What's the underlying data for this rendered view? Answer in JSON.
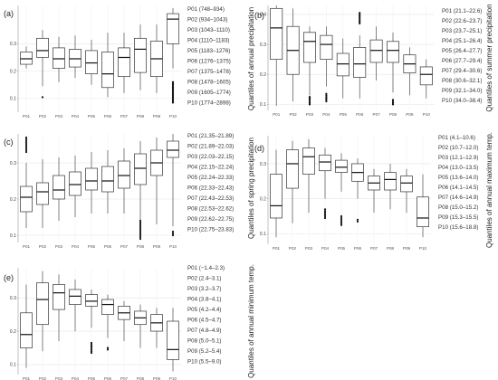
{
  "chart_data": [
    {
      "type": "box",
      "panel": "(a)",
      "ylabel": "Quantiles of annual precipitation",
      "ylim": [
        0.05,
        0.44
      ],
      "yticks": [
        0.1,
        0.2,
        0.3
      ],
      "grid": true,
      "categories": [
        "P01",
        "P02",
        "P03",
        "P04",
        "P05",
        "P06",
        "P07",
        "P08",
        "P09",
        "P10"
      ],
      "legend": [
        "P01 (748–934)",
        "P02 (934–1043)",
        "P03 (1043–1110)",
        "P04 (1110–1183)",
        "P05 (1183–1276)",
        "P06 (1276–1375)",
        "P07 (1375–1478)",
        "P08 (1478–1605)",
        "P09 (1605–1774)",
        "P10 (1774–2898)"
      ],
      "boxes": [
        {
          "min": 0.21,
          "q1": 0.225,
          "median": 0.245,
          "q3": 0.27,
          "max": 0.29,
          "outliers": []
        },
        {
          "min": 0.145,
          "q1": 0.25,
          "median": 0.275,
          "q3": 0.32,
          "max": 0.35,
          "outliers": [
            0.105
          ]
        },
        {
          "min": 0.16,
          "q1": 0.21,
          "median": 0.245,
          "q3": 0.285,
          "max": 0.325,
          "outliers": []
        },
        {
          "min": 0.175,
          "q1": 0.215,
          "median": 0.245,
          "q3": 0.28,
          "max": 0.33,
          "outliers": []
        },
        {
          "min": 0.15,
          "q1": 0.19,
          "median": 0.23,
          "q3": 0.275,
          "max": 0.315,
          "outliers": []
        },
        {
          "min": 0.105,
          "q1": 0.14,
          "median": 0.19,
          "q3": 0.27,
          "max": 0.34,
          "outliers": []
        },
        {
          "min": 0.12,
          "q1": 0.18,
          "median": 0.25,
          "q3": 0.285,
          "max": 0.34,
          "outliers": []
        },
        {
          "min": 0.13,
          "q1": 0.195,
          "median": 0.28,
          "q3": 0.32,
          "max": 0.37,
          "outliers": []
        },
        {
          "min": 0.12,
          "q1": 0.18,
          "median": 0.245,
          "q3": 0.31,
          "max": 0.37,
          "outliers": []
        },
        {
          "min": 0.21,
          "q1": 0.3,
          "median": 0.39,
          "q3": 0.41,
          "max": 0.43,
          "outliers": [
            0.085,
            0.09,
            0.095,
            0.1,
            0.105,
            0.11,
            0.115,
            0.12,
            0.125,
            0.13,
            0.135,
            0.14,
            0.145,
            0.15,
            0.155,
            0.16
          ]
        }
      ]
    },
    {
      "type": "box",
      "panel": "(b)",
      "ylabel": "Quantiles of summer precipitation",
      "ylim": [
        0.08,
        0.43
      ],
      "yticks": [
        0.1,
        0.2,
        0.3,
        0.4
      ],
      "grid": true,
      "categories": [
        "P01",
        "P02",
        "P03",
        "P04",
        "P05",
        "P06",
        "P07",
        "P08",
        "P09",
        "P10"
      ],
      "legend": [
        "P01 (21.1–22.6)",
        "P02 (22.6–23.7)",
        "P03 (23.7–25.1)",
        "P04 (25.1–26.4)",
        "P05 (26.4–27.7)",
        "P06 (27.7–29.4)",
        "P07 (29.4–30.6)",
        "P08 (30.6–32.1)",
        "P09 (32.1–34.0)",
        "P10 (34.0–38.4)"
      ],
      "boxes": [
        {
          "min": 0.095,
          "q1": 0.25,
          "median": 0.355,
          "q3": 0.42,
          "max": 0.43,
          "outliers": []
        },
        {
          "min": 0.11,
          "q1": 0.2,
          "median": 0.28,
          "q3": 0.36,
          "max": 0.42,
          "outliers": []
        },
        {
          "min": 0.13,
          "q1": 0.24,
          "median": 0.31,
          "q3": 0.34,
          "max": 0.36,
          "outliers": [
            0.1,
            0.105,
            0.11,
            0.115,
            0.12,
            0.125
          ]
        },
        {
          "min": 0.16,
          "q1": 0.25,
          "median": 0.3,
          "q3": 0.33,
          "max": 0.36,
          "outliers": [
            0.11,
            0.115,
            0.12,
            0.125,
            0.13,
            0.135
          ]
        },
        {
          "min": 0.12,
          "q1": 0.195,
          "median": 0.235,
          "q3": 0.27,
          "max": 0.32,
          "outliers": []
        },
        {
          "min": 0.12,
          "q1": 0.19,
          "median": 0.235,
          "q3": 0.29,
          "max": 0.33,
          "outliers": [
            0.37,
            0.375,
            0.38,
            0.385,
            0.39,
            0.395,
            0.4,
            0.405
          ]
        },
        {
          "min": 0.18,
          "q1": 0.24,
          "median": 0.28,
          "q3": 0.315,
          "max": 0.36,
          "outliers": []
        },
        {
          "min": 0.14,
          "q1": 0.24,
          "median": 0.28,
          "q3": 0.31,
          "max": 0.34,
          "outliers": [
            0.1,
            0.105,
            0.11,
            0.115
          ]
        },
        {
          "min": 0.13,
          "q1": 0.205,
          "median": 0.235,
          "q3": 0.265,
          "max": 0.29,
          "outliers": []
        },
        {
          "min": 0.12,
          "q1": 0.165,
          "median": 0.2,
          "q3": 0.225,
          "max": 0.25,
          "outliers": []
        }
      ]
    },
    {
      "type": "box",
      "panel": "(c)",
      "ylabel": "Quantiles of spring precipitation",
      "ylim": [
        0.08,
        0.38
      ],
      "yticks": [
        0.1,
        0.2,
        0.3
      ],
      "grid": true,
      "categories": [
        "P01",
        "P02",
        "P03",
        "P04",
        "P05",
        "P06",
        "P07",
        "P08",
        "P09",
        "P10"
      ],
      "legend": [
        "P01 (21.35–21.89)",
        "P02 (21.89–22.03)",
        "P03 (22.03–22.15)",
        "P04 (22.15–22.24)",
        "P05 (22.24–22.33)",
        "P06 (22.33–22.43)",
        "P07 (22.43–22.53)",
        "P08 (22.53–22.62)",
        "P09 (22.62–22.75)",
        "P10 (22.75–23.83)"
      ],
      "boxes": [
        {
          "min": 0.12,
          "q1": 0.165,
          "median": 0.205,
          "q3": 0.235,
          "max": 0.3,
          "outliers": [
            0.33,
            0.335,
            0.34,
            0.345,
            0.35,
            0.355,
            0.36,
            0.365,
            0.37
          ]
        },
        {
          "min": 0.12,
          "q1": 0.185,
          "median": 0.22,
          "q3": 0.245,
          "max": 0.31,
          "outliers": []
        },
        {
          "min": 0.14,
          "q1": 0.2,
          "median": 0.225,
          "q3": 0.265,
          "max": 0.315,
          "outliers": []
        },
        {
          "min": 0.15,
          "q1": 0.21,
          "median": 0.24,
          "q3": 0.275,
          "max": 0.32,
          "outliers": []
        },
        {
          "min": 0.16,
          "q1": 0.225,
          "median": 0.25,
          "q3": 0.285,
          "max": 0.33,
          "outliers": []
        },
        {
          "min": 0.16,
          "q1": 0.22,
          "median": 0.25,
          "q3": 0.29,
          "max": 0.335,
          "outliers": []
        },
        {
          "min": 0.16,
          "q1": 0.23,
          "median": 0.265,
          "q3": 0.305,
          "max": 0.34,
          "outliers": []
        },
        {
          "min": 0.14,
          "q1": 0.24,
          "median": 0.285,
          "q3": 0.325,
          "max": 0.36,
          "outliers": [
            0.09,
            0.095,
            0.1,
            0.105,
            0.11,
            0.115,
            0.12,
            0.125,
            0.13,
            0.135,
            0.14
          ]
        },
        {
          "min": 0.13,
          "q1": 0.265,
          "median": 0.3,
          "q3": 0.335,
          "max": 0.37,
          "outliers": []
        },
        {
          "min": 0.125,
          "q1": 0.315,
          "median": 0.335,
          "q3": 0.36,
          "max": 0.38,
          "outliers": [
            0.1,
            0.105,
            0.11
          ]
        }
      ]
    },
    {
      "type": "box",
      "panel": "(d)",
      "ylabel": "Quantiles of annual maximum temp.",
      "ylim": [
        0.07,
        0.38
      ],
      "yticks": [
        0.1,
        0.2,
        0.3
      ],
      "grid": true,
      "categories": [
        "P01",
        "P02",
        "P03",
        "P04",
        "P05",
        "P06",
        "P07",
        "P08",
        "P09",
        "P10"
      ],
      "legend": [
        "P01 (4.1–10.6)",
        "P02 (10.7–12.0)",
        "P03 (12.1–12.9)",
        "P04 (13.0–13.5)",
        "P05 (13.6–14.0)",
        "P06 (14.1–14.5)",
        "P07 (14.6–14.9)",
        "P08 (15.0–15.2)",
        "P09 (15.3–15.5)",
        "P10 (15.6–18.8)"
      ],
      "boxes": [
        {
          "min": 0.09,
          "q1": 0.145,
          "median": 0.18,
          "q3": 0.27,
          "max": 0.34,
          "outliers": []
        },
        {
          "min": 0.13,
          "q1": 0.23,
          "median": 0.3,
          "q3": 0.34,
          "max": 0.365,
          "outliers": []
        },
        {
          "min": 0.16,
          "q1": 0.27,
          "median": 0.32,
          "q3": 0.345,
          "max": 0.37,
          "outliers": []
        },
        {
          "min": 0.2,
          "q1": 0.28,
          "median": 0.305,
          "q3": 0.325,
          "max": 0.345,
          "outliers": [
            0.145,
            0.15,
            0.155,
            0.16,
            0.165,
            0.17
          ]
        },
        {
          "min": 0.22,
          "q1": 0.275,
          "median": 0.29,
          "q3": 0.31,
          "max": 0.33,
          "outliers": [
            0.125,
            0.13,
            0.135,
            0.14,
            0.145,
            0.15
          ]
        },
        {
          "min": 0.2,
          "q1": 0.25,
          "median": 0.275,
          "q3": 0.3,
          "max": 0.315,
          "outliers": [
            0.135,
            0.14
          ]
        },
        {
          "min": 0.16,
          "q1": 0.225,
          "median": 0.245,
          "q3": 0.265,
          "max": 0.285,
          "outliers": []
        },
        {
          "min": 0.17,
          "q1": 0.225,
          "median": 0.255,
          "q3": 0.275,
          "max": 0.3,
          "outliers": []
        },
        {
          "min": 0.16,
          "q1": 0.22,
          "median": 0.245,
          "q3": 0.265,
          "max": 0.285,
          "outliers": []
        },
        {
          "min": 0.09,
          "q1": 0.12,
          "median": 0.145,
          "q3": 0.205,
          "max": 0.27,
          "outliers": []
        }
      ]
    },
    {
      "type": "box",
      "panel": "(e)",
      "ylabel": "Quantiles of annual minimum temp.",
      "ylim": [
        0.07,
        0.39
      ],
      "yticks": [
        0.1,
        0.2,
        0.3
      ],
      "grid": true,
      "categories": [
        "P01",
        "P02",
        "P03",
        "P04",
        "P05",
        "P06",
        "P07",
        "P08",
        "P09",
        "P10"
      ],
      "legend": [
        "P01 (−1.4–2.3)",
        "P02 (2.4–3.1)",
        "P03 (3.2–3.7)",
        "P04 (3.8–4.1)",
        "P05 (4.2–4.4)",
        "P06 (4.5–4.7)",
        "P07 (4.8–4.9)",
        "P08 (5.0–5.1)",
        "P09 (5.2–5.4)",
        "P10 (5.5–9.0)"
      ],
      "boxes": [
        {
          "min": 0.09,
          "q1": 0.15,
          "median": 0.19,
          "q3": 0.255,
          "max": 0.34,
          "outliers": []
        },
        {
          "min": 0.14,
          "q1": 0.22,
          "median": 0.295,
          "q3": 0.345,
          "max": 0.38,
          "outliers": []
        },
        {
          "min": 0.17,
          "q1": 0.265,
          "median": 0.315,
          "q3": 0.34,
          "max": 0.37,
          "outliers": []
        },
        {
          "min": 0.2,
          "q1": 0.28,
          "median": 0.305,
          "q3": 0.325,
          "max": 0.355,
          "outliers": []
        },
        {
          "min": 0.21,
          "q1": 0.275,
          "median": 0.29,
          "q3": 0.31,
          "max": 0.325,
          "outliers": [
            0.135,
            0.14,
            0.145,
            0.15,
            0.155,
            0.16,
            0.165
          ]
        },
        {
          "min": 0.18,
          "q1": 0.25,
          "median": 0.28,
          "q3": 0.295,
          "max": 0.31,
          "outliers": [
            0.145,
            0.15
          ]
        },
        {
          "min": 0.17,
          "q1": 0.235,
          "median": 0.255,
          "q3": 0.275,
          "max": 0.29,
          "outliers": []
        },
        {
          "min": 0.15,
          "q1": 0.22,
          "median": 0.24,
          "q3": 0.26,
          "max": 0.28,
          "outliers": []
        },
        {
          "min": 0.15,
          "q1": 0.2,
          "median": 0.225,
          "q3": 0.25,
          "max": 0.27,
          "outliers": []
        },
        {
          "min": 0.08,
          "q1": 0.115,
          "median": 0.145,
          "q3": 0.23,
          "max": 0.27,
          "outliers": []
        }
      ]
    }
  ]
}
